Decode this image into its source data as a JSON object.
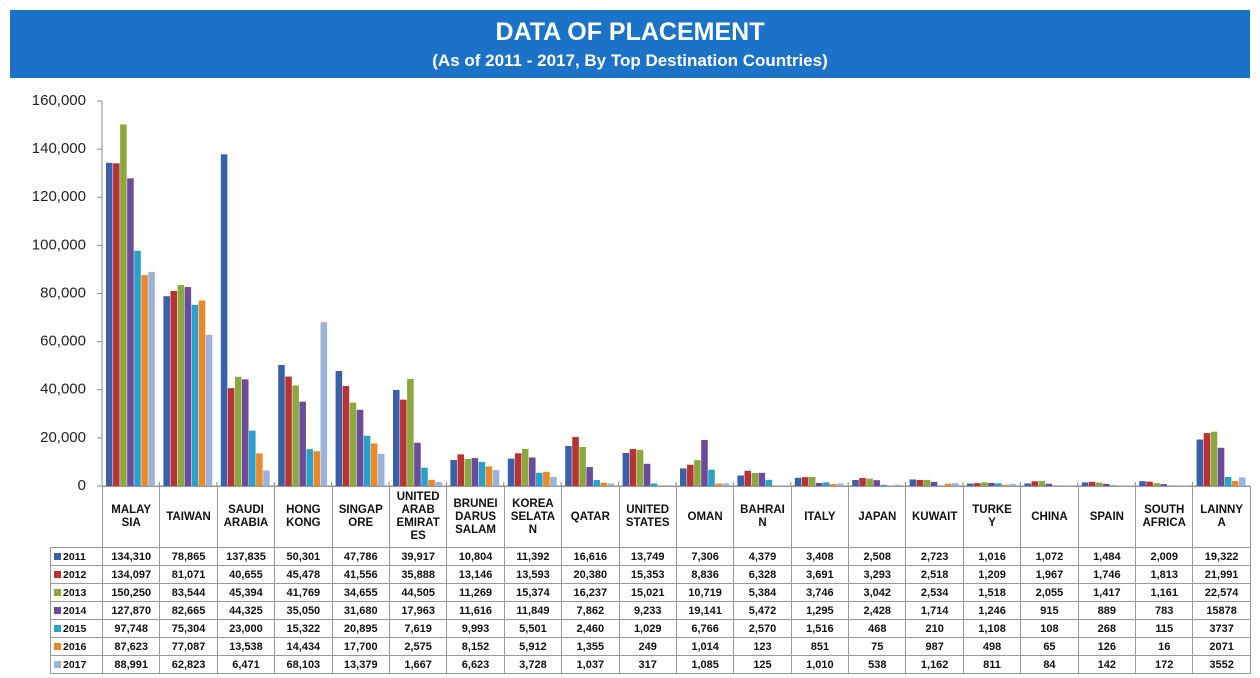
{
  "chart_data": {
    "type": "bar",
    "title": "DATA OF PLACEMENT",
    "subtitle": "(As of 2011  -  2017, By Top Destination Countries)",
    "categories": [
      "MALAY\nSIA",
      "TAIWAN",
      "SAUDI\nARABIA",
      "HONG\nKONG",
      "SINGAP\nORE",
      "UNITED\nARAB\nEMIRAT\nES",
      "BRUNEI\nDARUS\nSALAM",
      "KOREA\nSELATA\nN",
      "QATAR",
      "UNITED\nSTATES",
      "OMAN",
      "BAHRAI\nN",
      "ITALY",
      "JAPAN",
      "KUWAIT",
      "TURKE\nY",
      "CHINA",
      "SPAIN",
      "SOUTH\nAFRICA",
      "LAINNY\nA"
    ],
    "series": [
      {
        "name": "2011",
        "color": "#3b5fa8",
        "values": [
          134310,
          78865,
          137835,
          50301,
          47786,
          39917,
          10804,
          11392,
          16616,
          13749,
          7306,
          4379,
          3408,
          2508,
          2723,
          1016,
          1072,
          1484,
          2009,
          19322
        ],
        "value_labels": [
          "134,310",
          "78,865",
          "137,835",
          "50,301",
          "47,786",
          "39,917",
          "10,804",
          "11,392",
          "16,616",
          "13,749",
          "7,306",
          "4,379",
          "3,408",
          "2,508",
          "2,723",
          "1,016",
          "1,072",
          "1,484",
          "2,009",
          "19,322"
        ]
      },
      {
        "name": "2012",
        "color": "#b83434",
        "values": [
          134097,
          81071,
          40655,
          45478,
          41556,
          35888,
          13146,
          13593,
          20380,
          15353,
          8836,
          6328,
          3691,
          3293,
          2518,
          1209,
          1967,
          1746,
          1813,
          21991
        ],
        "value_labels": [
          "134,097",
          "81,071",
          "40,655",
          "45,478",
          "41,556",
          "35,888",
          "13,146",
          "13,593",
          "20,380",
          "15,353",
          "8,836",
          "6,328",
          "3,691",
          "3,293",
          "2,518",
          "1,209",
          "1,967",
          "1,746",
          "1,813",
          "21,991"
        ]
      },
      {
        "name": "2013",
        "color": "#8aa83e",
        "values": [
          150250,
          83544,
          45394,
          41769,
          34655,
          44505,
          11269,
          15374,
          16237,
          15021,
          10719,
          5384,
          3746,
          3042,
          2534,
          1518,
          2055,
          1417,
          1161,
          22574
        ],
        "value_labels": [
          "150,250",
          "83,544",
          "45,394",
          "41,769",
          "34,655",
          "44,505",
          "11,269",
          "15,374",
          "16,237",
          "15,021",
          "10,719",
          "5,384",
          "3,746",
          "3,042",
          "2,534",
          "1,518",
          "2,055",
          "1,417",
          "1,161",
          "22,574"
        ]
      },
      {
        "name": "2014",
        "color": "#6b4c9a",
        "values": [
          127870,
          82665,
          44325,
          35050,
          31680,
          17963,
          11616,
          11849,
          7862,
          9233,
          19141,
          5472,
          1295,
          2428,
          1714,
          1246,
          915,
          889,
          783,
          15878
        ],
        "value_labels": [
          "127,870",
          "82,665",
          "44,325",
          "35,050",
          "31,680",
          "17,963",
          "11,616",
          "11,849",
          "7,862",
          "9,233",
          "19,141",
          "5,472",
          "1,295",
          "2,428",
          "1,714",
          "1,246",
          "915",
          "889",
          "783",
          "15878"
        ]
      },
      {
        "name": "2015",
        "color": "#2ba1c9",
        "values": [
          97748,
          75304,
          23000,
          15322,
          20895,
          7619,
          9993,
          5501,
          2460,
          1029,
          6766,
          2570,
          1516,
          468,
          210,
          1108,
          108,
          268,
          115,
          3737
        ],
        "value_labels": [
          "97,748",
          "75,304",
          "23,000",
          "15,322",
          "20,895",
          "7,619",
          "9,993",
          "5,501",
          "2,460",
          "1,029",
          "6,766",
          "2,570",
          "1,516",
          "468",
          "210",
          "1,108",
          "108",
          "268",
          "115",
          "3737"
        ]
      },
      {
        "name": "2016",
        "color": "#e8892b",
        "values": [
          87623,
          77087,
          13538,
          14434,
          17700,
          2575,
          8152,
          5912,
          1355,
          249,
          1014,
          123,
          851,
          75,
          987,
          498,
          65,
          126,
          16,
          2071
        ],
        "value_labels": [
          "87,623",
          "77,087",
          "13,538",
          "14,434",
          "17,700",
          "2,575",
          "8,152",
          "5,912",
          "1,355",
          "249",
          "1,014",
          "123",
          "851",
          "75",
          "987",
          "498",
          "65",
          "126",
          "16",
          "2071"
        ]
      },
      {
        "name": "2017",
        "color": "#9bb2d9",
        "values": [
          88991,
          62823,
          6471,
          68103,
          13379,
          1667,
          6623,
          3728,
          1037,
          317,
          1085,
          125,
          1010,
          538,
          1162,
          811,
          84,
          142,
          172,
          3552
        ],
        "value_labels": [
          "88,991",
          "62,823",
          "6,471",
          "68,103",
          "13,379",
          "1,667",
          "6,623",
          "3,728",
          "1,037",
          "317",
          "1,085",
          "125",
          "1,010",
          "538",
          "1,162",
          "811",
          "84",
          "142",
          "172",
          "3552"
        ]
      }
    ],
    "ylim": [
      0,
      160000
    ],
    "yticks": [
      0,
      {
        "value": 20000,
        "label": "20,000"
      },
      {
        "value": 40000,
        "label": "40,000"
      },
      {
        "value": 60000,
        "label": "60,000"
      },
      {
        "value": 80000,
        "label": "80,000"
      },
      {
        "value": 100000,
        "label": "100,000"
      },
      {
        "value": 120000,
        "label": "120,000"
      },
      {
        "value": 140000,
        "label": "140,000"
      },
      {
        "value": 160000,
        "label": "160,000"
      }
    ]
  }
}
